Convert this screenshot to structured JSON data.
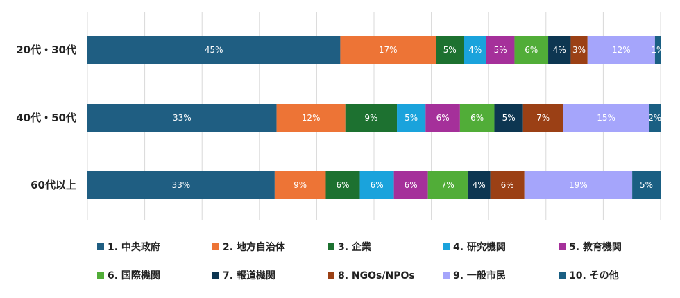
{
  "chart_data": {
    "type": "bar",
    "orientation": "horizontal",
    "stacked": "percent",
    "categories": [
      "20代・30代",
      "40代・50代",
      "60代以上"
    ],
    "series": [
      {
        "name": "1. 中央政府",
        "color": "#1f5e82",
        "values": [
          45,
          33,
          33
        ],
        "labels": [
          "45%",
          "33%",
          "33%"
        ]
      },
      {
        "name": "2. 地方自治体",
        "color": "#ed7436",
        "values": [
          17,
          12,
          9
        ],
        "labels": [
          "17%",
          "12%",
          "9%"
        ]
      },
      {
        "name": "3. 企業",
        "color": "#1d7130",
        "values": [
          5,
          9,
          6
        ],
        "labels": [
          "5%",
          "9%",
          "6%"
        ]
      },
      {
        "name": "4. 研究機関",
        "color": "#1aa3dc",
        "values": [
          4,
          5,
          6
        ],
        "labels": [
          "4%",
          "5%",
          "6%"
        ]
      },
      {
        "name": "5. 教育機関",
        "color": "#a5309a",
        "values": [
          5,
          6,
          6
        ],
        "labels": [
          "5%",
          "6%",
          "6%"
        ]
      },
      {
        "name": "6. 国際機関",
        "color": "#51ad38",
        "values": [
          6,
          6,
          7
        ],
        "labels": [
          "6%",
          "6%",
          "7%"
        ]
      },
      {
        "name": "7. 報道機関",
        "color": "#0d3651",
        "values": [
          4,
          5,
          4
        ],
        "labels": [
          "4%",
          "5%",
          "4%"
        ]
      },
      {
        "name": "8. NGOs/NPOs",
        "color": "#9b4015",
        "values": [
          3,
          7,
          6
        ],
        "labels": [
          "3%",
          "7%",
          "6%"
        ]
      },
      {
        "name": "9. 一般市民",
        "color": "#a5a5fb",
        "values": [
          12,
          15,
          19
        ],
        "labels": [
          "12%",
          "15%",
          "19%"
        ]
      },
      {
        "name": "10. その他",
        "color": "#1a5f83",
        "values": [
          1,
          2,
          5
        ],
        "labels": [
          "1%",
          "2%",
          "5%"
        ]
      }
    ],
    "xlim": [
      0,
      100
    ],
    "grid": true,
    "legend_position": "bottom"
  }
}
